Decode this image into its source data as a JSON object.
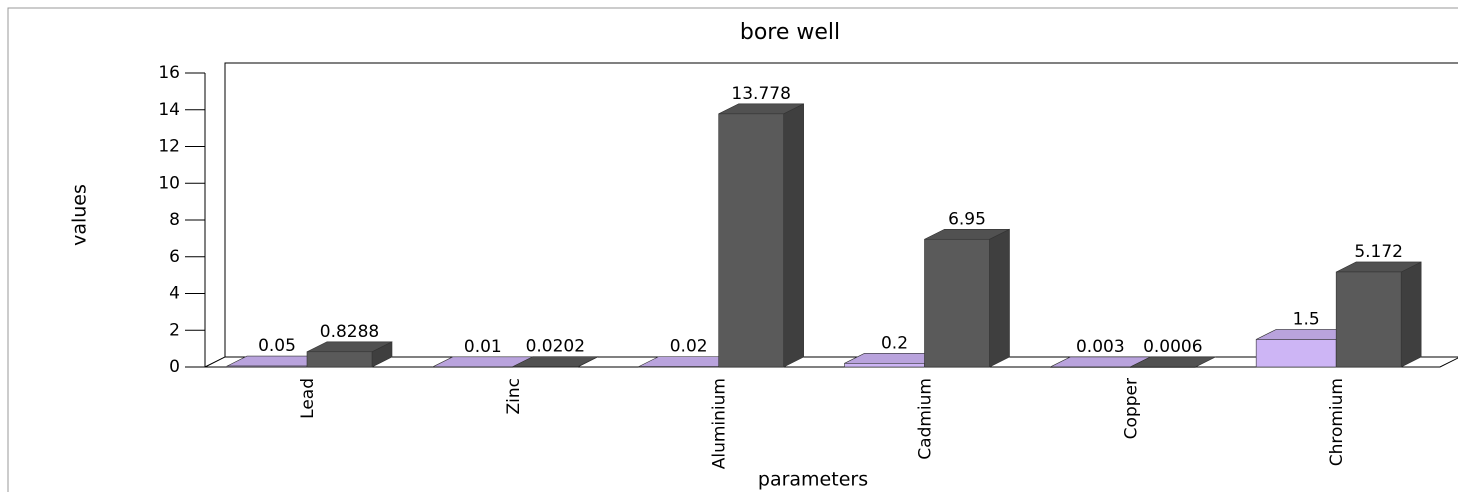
{
  "chart_data": {
    "type": "bar3d",
    "title": "bore well",
    "x_label": "parameters",
    "y_label": "values",
    "categories": [
      "Lead",
      "Zinc",
      "Aluminium",
      "Cadmium",
      "Copper",
      "Chromium"
    ],
    "series": [
      {
        "color": "#cdb5f5",
        "values": [
          0.05,
          0.01,
          0.02,
          0.2,
          0.003,
          1.5
        ]
      },
      {
        "color": "#5a5a5a",
        "values": [
          0.8288,
          0.0202,
          13.778,
          6.95,
          0.0006,
          5.172
        ]
      }
    ],
    "ylim": [
      0,
      16
    ],
    "yticks": [
      0,
      2,
      4,
      6,
      8,
      10,
      12,
      14,
      16
    ],
    "grid": false
  }
}
